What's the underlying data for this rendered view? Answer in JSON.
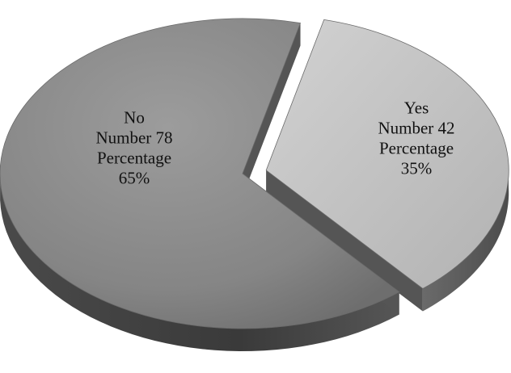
{
  "chart_data": {
    "type": "pie",
    "style": "3d-exploded",
    "slices": [
      {
        "name": "No",
        "value": 78,
        "percent": 65,
        "color": "#8a8a8a",
        "label_lines": [
          "No",
          "Number 78",
          "Percentage",
          "65%"
        ]
      },
      {
        "name": "Yes",
        "value": 42,
        "percent": 35,
        "color": "#bdbdbd",
        "label_lines": [
          "Yes",
          "Number 42",
          "Percentage",
          "35%"
        ]
      }
    ],
    "legend": "none"
  }
}
